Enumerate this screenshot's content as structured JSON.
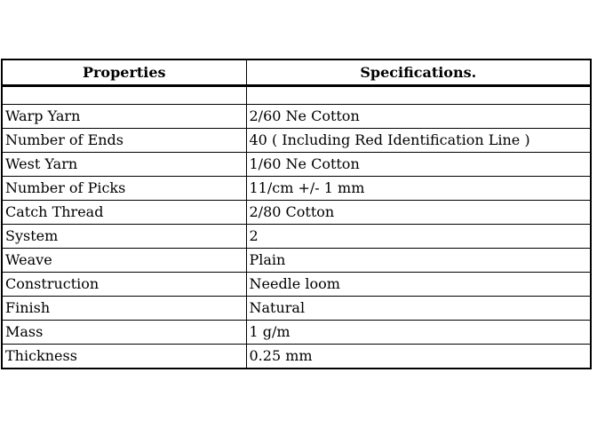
{
  "page": {
    "background_color": "#ffffff",
    "text_color": "#000000",
    "border_color": "#000000"
  },
  "table": {
    "columns": [
      {
        "label": "Properties"
      },
      {
        "label": "Specifications."
      }
    ],
    "rows": [
      {
        "property": "",
        "specification": ""
      },
      {
        "property": "Warp Yarn",
        "specification": "2/60 Ne Cotton"
      },
      {
        "property": "Number of Ends",
        "specification": "40 ( Including Red Identification Line )"
      },
      {
        "property": "West Yarn",
        "specification": "1/60 Ne Cotton"
      },
      {
        "property": "Number of Picks",
        "specification": "11/cm +/- 1 mm"
      },
      {
        "property": "Catch Thread",
        "specification": "2/80 Cotton"
      },
      {
        "property": "System",
        "specification": "2"
      },
      {
        "property": "Weave",
        "specification": "Plain"
      },
      {
        "property": "Construction",
        "specification": "Needle loom"
      },
      {
        "property": "Finish",
        "specification": "Natural"
      },
      {
        "property": "Mass",
        "specification": "1 g/m"
      },
      {
        "property": "Thickness",
        "specification": "0.25 mm"
      }
    ]
  }
}
